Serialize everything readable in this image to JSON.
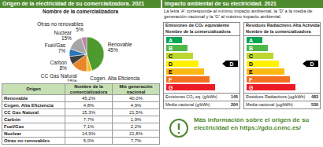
{
  "chart_data": {
    "type": "pie",
    "title": "Nombre de la comercializadora",
    "categories": [
      "Renovable",
      "Cogen. Alta Eficiencia",
      "CC Gas Natural",
      "Carbón",
      "Fuel/Gas",
      "Nuclear",
      "Otras no renovables"
    ],
    "values": [
      45,
      5,
      15,
      8,
      7,
      15,
      5
    ],
    "value_labels": [
      "45%",
      "5%",
      "15%",
      "8%",
      "7%",
      "15%",
      "5%"
    ],
    "colors": [
      "#4f9a2f",
      "#f2c12e",
      "#e8862a",
      "#3f3f3f",
      "#2e75b6",
      "#a6a6a6",
      "#c27fb0"
    ],
    "data_labels": true
  },
  "header": {
    "title": "Origen de la electricidad de su comercializadora. 2021"
  },
  "table": {
    "columns": [
      "Origen",
      "Nombre de la comercializadora",
      "Mix generación nacional"
    ],
    "rows": [
      [
        "Renovable",
        "45,2%",
        "40,0%"
      ],
      [
        "Cogen. Alta Eficiencia",
        "4,8%",
        "4,9%"
      ],
      [
        "CC Gas Natural",
        "15,3%",
        "21,5%"
      ],
      [
        "Carbón",
        "7,7%",
        "1,9%"
      ],
      [
        "Fuel/Gas",
        "7,1%",
        "2,2%"
      ],
      [
        "Nuclear",
        "14,9%",
        "21,8%"
      ],
      [
        "Otras no renovables",
        "5,0%",
        "7,7%"
      ]
    ]
  },
  "impact": {
    "title": "Impacto ambiental de su electricidad. 2021",
    "note": "La letra 'A' corresponde al mínimo impacto ambiental, la 'D' a la media de generación nacional y la 'G' al máximo impacto ambiental.",
    "scale": [
      "A",
      "B",
      "C",
      "D",
      "E",
      "F",
      "G"
    ],
    "colors": [
      "#00a651",
      "#50b848",
      "#bed630",
      "#fff200",
      "#fdb913",
      "#f37021",
      "#ed1c24"
    ],
    "panels": [
      {
        "title": "Emisiones de CO₂ equivalente",
        "subtitle": "Nombre de la comercializadora",
        "class": "D",
        "rows": [
          {
            "label": "Emisiones CO₂ eq. (g/kWh)",
            "value": 145
          },
          {
            "label": "Media nacional (g/kWh)",
            "value": 204
          }
        ]
      },
      {
        "title": "Residuos Radiactivos Alta Actividad",
        "subtitle": "Nombre de la comercializadora",
        "class": "D",
        "rows": [
          {
            "label": "Residuos Radiactivos (µg/kWh)",
            "value": 483
          },
          {
            "label": "Media nacional (µg/kWh)",
            "value": 530
          }
        ]
      }
    ]
  },
  "footer": {
    "text": "Más información sobre el origen de su electricidad en https://gdo.cnmc.es/"
  }
}
